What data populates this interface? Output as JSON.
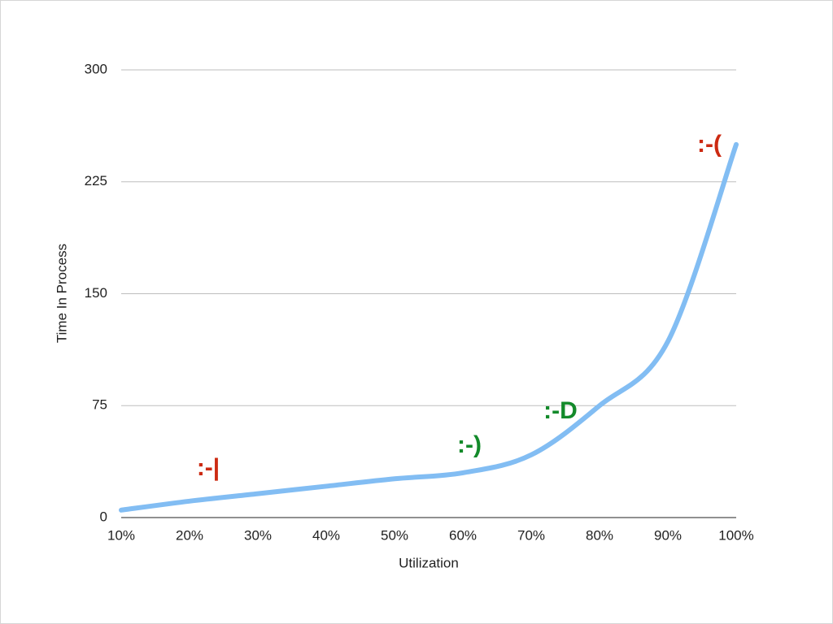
{
  "chart_data": {
    "type": "line",
    "x": [
      10,
      20,
      30,
      40,
      50,
      60,
      70,
      80,
      90,
      100
    ],
    "series": [
      {
        "name": "Time In Process",
        "color": "#82bdf3",
        "values": [
          5,
          11,
          16,
          21,
          26,
          30,
          42,
          75,
          118,
          250
        ]
      }
    ],
    "xlim": [
      10,
      100
    ],
    "xticks": [
      {
        "value": 10,
        "label": "10%"
      },
      {
        "value": 20,
        "label": "20%"
      },
      {
        "value": 30,
        "label": "30%"
      },
      {
        "value": 40,
        "label": "40%"
      },
      {
        "value": 50,
        "label": "50%"
      },
      {
        "value": 60,
        "label": "60%"
      },
      {
        "value": 70,
        "label": "70%"
      },
      {
        "value": 80,
        "label": "80%"
      },
      {
        "value": 90,
        "label": "90%"
      },
      {
        "value": 100,
        "label": "100%"
      }
    ],
    "ylim": [
      0,
      300
    ],
    "yticks": [
      0,
      75,
      150,
      225,
      300
    ],
    "grid": true,
    "xlabel": "Utilization",
    "ylabel": "Time In Process",
    "annotations": [
      {
        "text": ":-|",
        "color": "#cc2a12"
      },
      {
        "text": ":-)",
        "color": "#138a2a"
      },
      {
        "text": ":-D",
        "color": "#138a2a"
      },
      {
        "text": ":-(",
        "color": "#cc2a12"
      }
    ]
  }
}
